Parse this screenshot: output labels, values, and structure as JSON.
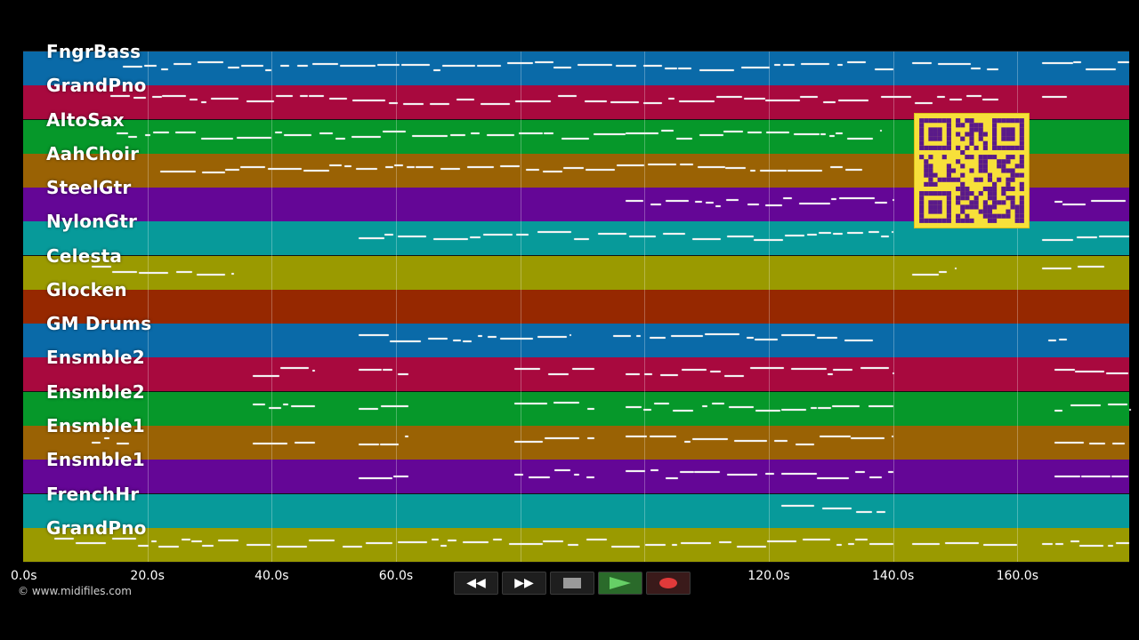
{
  "tracks": [
    {
      "name": "FngrBass",
      "color": "#0a6aa8"
    },
    {
      "name": "GrandPno",
      "color": "#a8093e"
    },
    {
      "name": "AltoSax",
      "color": "#06982a"
    },
    {
      "name": "AahChoir",
      "color": "#9a6204"
    },
    {
      "name": "SteelGtr",
      "color": "#640696"
    },
    {
      "name": "NylonGtr",
      "color": "#079a9a"
    },
    {
      "name": "Celesta",
      "color": "#9a9a00"
    },
    {
      "name": "Glocken",
      "color": "#962800"
    },
    {
      "name": "GM Drums",
      "color": "#0a6aa8"
    },
    {
      "name": "Ensmble2",
      "color": "#a8093e"
    },
    {
      "name": "Ensmble2",
      "color": "#06982a"
    },
    {
      "name": "Ensmble1",
      "color": "#9a6204"
    },
    {
      "name": "Ensmble1",
      "color": "#640696"
    },
    {
      "name": "FrenchHr",
      "color": "#079a9a"
    },
    {
      "name": "GrandPno",
      "color": "#9a9a00"
    }
  ],
  "time_axis": {
    "start_s": 0,
    "end_s": 178,
    "ticks": [
      "0.0s",
      "20.0s",
      "40.0s",
      "60.0s",
      "120.0s",
      "140.0s",
      "160.0s"
    ],
    "tick_values": [
      0,
      20,
      40,
      60,
      120,
      140,
      160
    ]
  },
  "copyright": "© www.midifiles.com",
  "controls": {
    "rewind_label": "◀◀",
    "forward_label": "▶▶",
    "colors": {
      "play": "#66d066",
      "record": "#e03a3a",
      "stop": "#9a9a9a"
    }
  },
  "icons": [
    "rewind-icon",
    "fast-forward-icon",
    "stop-icon",
    "play-icon",
    "record-icon",
    "qr-code-icon"
  ]
}
